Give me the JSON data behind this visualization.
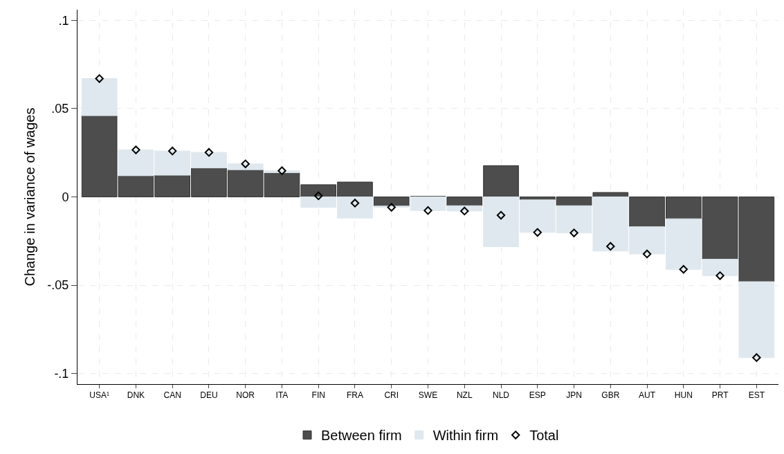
{
  "chart_data": {
    "type": "bar",
    "stacked": true,
    "ylabel": "Change in variance of wages",
    "categories": [
      "USA¹",
      "DNK",
      "CAN",
      "DEU",
      "NOR",
      "ITA",
      "FIN",
      "FRA",
      "CRI",
      "SWE",
      "NZL",
      "NLD",
      "ESP",
      "JPN",
      "GBR",
      "AUT",
      "HUN",
      "PRT",
      "EST"
    ],
    "series": [
      {
        "name": "Between firm",
        "color": "#4d4d4d",
        "values": [
          0.046,
          0.012,
          0.0123,
          0.0164,
          0.0154,
          0.0137,
          0.0069,
          0.0084,
          -0.0052,
          0.0003,
          -0.005,
          0.0177,
          -0.0017,
          -0.005,
          0.0025,
          -0.0169,
          -0.0124,
          -0.0353,
          -0.048
        ]
      },
      {
        "name": "Within firm",
        "color": "#dfe8ee",
        "values": [
          0.021,
          0.0146,
          0.0137,
          0.0088,
          0.0033,
          0.0011,
          -0.006,
          -0.012,
          -0.0007,
          -0.0077,
          -0.003,
          -0.0282,
          -0.0184,
          -0.0154,
          -0.0307,
          -0.0154,
          -0.0286,
          -0.0093,
          -0.043
        ]
      },
      {
        "name": "Total",
        "type": "scatter",
        "color": "#000000",
        "marker": "diamond",
        "values": [
          0.067,
          0.0266,
          0.026,
          0.0252,
          0.0187,
          0.0148,
          0.0006,
          -0.0035,
          -0.0059,
          -0.0077,
          -0.008,
          -0.0104,
          -0.0201,
          -0.0204,
          -0.028,
          -0.0323,
          -0.041,
          -0.0446,
          -0.091
        ]
      }
    ],
    "ylim": [
      -0.106,
      0.106
    ],
    "yticks": [
      {
        "value": -0.1,
        "label": "-.1"
      },
      {
        "value": -0.05,
        "label": "-.05"
      },
      0,
      {
        "value": 0.05,
        "label": ".05"
      },
      {
        "value": 0.1,
        "label": ".1"
      }
    ],
    "grid": true,
    "legend": "bottom"
  }
}
